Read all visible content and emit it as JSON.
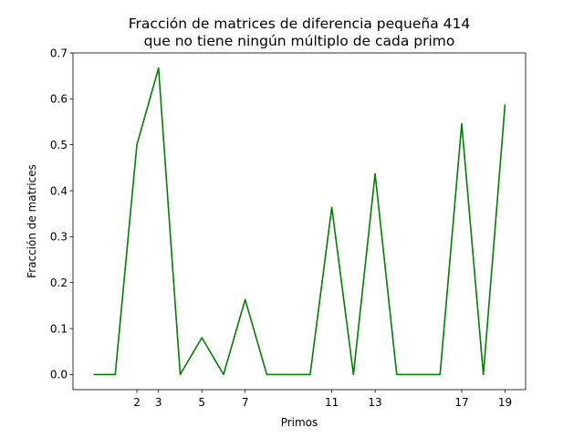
{
  "chart_data": {
    "type": "line",
    "title_lines": [
      "Fracción de matrices de diferencia pequeña 414",
      "que no tiene ningún múltiplo de cada primo"
    ],
    "xlabel": "Primos",
    "ylabel": "Fracción de matrices",
    "xlim": [
      -0.95,
      19.95
    ],
    "ylim": [
      -0.033,
      0.7
    ],
    "xticks": [
      2,
      3,
      5,
      7,
      11,
      13,
      17,
      19
    ],
    "yticks": [
      0.0,
      0.1,
      0.2,
      0.3,
      0.4,
      0.5,
      0.6,
      0.7
    ],
    "ytick_labels": [
      "0.0",
      "0.1",
      "0.2",
      "0.3",
      "0.4",
      "0.5",
      "0.6",
      "0.7"
    ],
    "line_color": "#008000",
    "series": [
      {
        "x": [
          0,
          1,
          2,
          3,
          4,
          5,
          6,
          7,
          8,
          9,
          10,
          11,
          12,
          13,
          14,
          15,
          16,
          17,
          18,
          19
        ],
        "y": [
          0,
          0,
          0.5,
          0.667,
          0,
          0.08,
          0,
          0.163,
          0,
          0,
          0,
          0.364,
          0,
          0.437,
          0,
          0,
          0,
          0.546,
          0,
          0.588
        ]
      }
    ]
  }
}
